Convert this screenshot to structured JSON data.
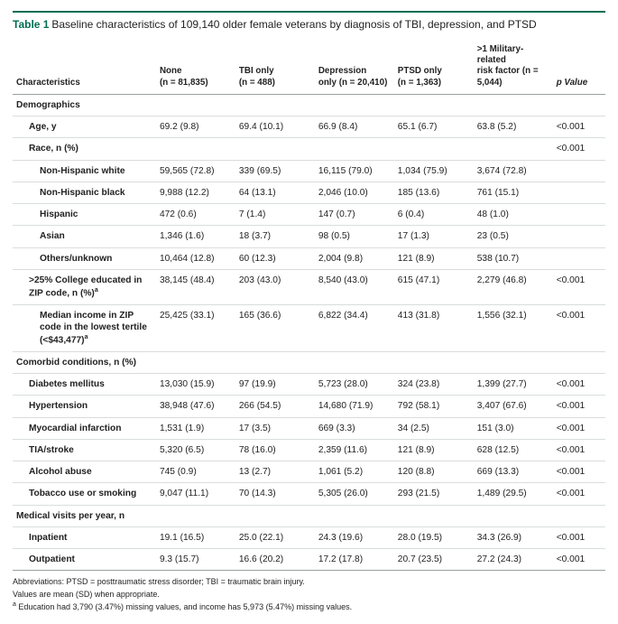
{
  "accent_color": "#006e53",
  "title_num": "Table 1",
  "title_caption": "Baseline characteristics of 109,140 older female veterans by diagnosis of TBI, depression, and PTSD",
  "header": {
    "char": "Characteristics",
    "g1a": "None",
    "g1b": "(n = 81,835)",
    "g2a": "TBI only",
    "g2b": "(n = 488)",
    "g3a": "Depression",
    "g3b": "only (n = 20,410)",
    "g4a": "PTSD only",
    "g4b": "(n = 1,363)",
    "g5a": ">1 Military-related",
    "g5b": "risk factor (n = 5,044)",
    "p": "p Value"
  },
  "sections": {
    "demo": "Demographics",
    "comorb": "Comorbid conditions, n (%)",
    "visits": "Medical visits per year, n"
  },
  "rows": {
    "age": {
      "l": "Age, y",
      "v": [
        "69.2 (9.8)",
        "69.4 (10.1)",
        "66.9 (8.4)",
        "65.1 (6.7)",
        "63.8 (5.2)"
      ],
      "p": "<0.001"
    },
    "race": {
      "l": "Race, n (%)",
      "v": [
        "",
        "",
        "",
        "",
        ""
      ],
      "p": "<0.001"
    },
    "nhw": {
      "l": "Non-Hispanic white",
      "v": [
        "59,565 (72.8)",
        "339 (69.5)",
        "16,115 (79.0)",
        "1,034 (75.9)",
        "3,674 (72.8)"
      ],
      "p": ""
    },
    "nhb": {
      "l": "Non-Hispanic black",
      "v": [
        "9,988 (12.2)",
        "64 (13.1)",
        "2,046 (10.0)",
        "185 (13.6)",
        "761 (15.1)"
      ],
      "p": ""
    },
    "hisp": {
      "l": "Hispanic",
      "v": [
        "472 (0.6)",
        "7 (1.4)",
        "147 (0.7)",
        "6 (0.4)",
        "48 (1.0)"
      ],
      "p": ""
    },
    "asian": {
      "l": "Asian",
      "v": [
        "1,346 (1.6)",
        "18 (3.7)",
        "98 (0.5)",
        "17 (1.3)",
        "23 (0.5)"
      ],
      "p": ""
    },
    "other": {
      "l": "Others/unknown",
      "v": [
        "10,464 (12.8)",
        "60 (12.3)",
        "2,004 (9.8)",
        "121 (8.9)",
        "538 (10.7)"
      ],
      "p": ""
    },
    "college": {
      "l": ">25% College educated in ZIP code, n (%)",
      "sup": "a",
      "v": [
        "38,145 (48.4)",
        "203 (43.0)",
        "8,540 (43.0)",
        "615 (47.1)",
        "2,279 (46.8)"
      ],
      "p": "<0.001"
    },
    "income": {
      "l": "Median income in ZIP code in the lowest tertile (<$43,477)",
      "sup": "a",
      "v": [
        "25,425 (33.1)",
        "165 (36.6)",
        "6,822 (34.4)",
        "413 (31.8)",
        "1,556 (32.1)"
      ],
      "p": "<0.001"
    },
    "dm": {
      "l": "Diabetes mellitus",
      "v": [
        "13,030 (15.9)",
        "97 (19.9)",
        "5,723 (28.0)",
        "324 (23.8)",
        "1,399 (27.7)"
      ],
      "p": "<0.001"
    },
    "htn": {
      "l": "Hypertension",
      "v": [
        "38,948 (47.6)",
        "266 (54.5)",
        "14,680 (71.9)",
        "792 (58.1)",
        "3,407 (67.6)"
      ],
      "p": "<0.001"
    },
    "mi": {
      "l": "Myocardial infarction",
      "v": [
        "1,531 (1.9)",
        "17 (3.5)",
        "669 (3.3)",
        "34 (2.5)",
        "151 (3.0)"
      ],
      "p": "<0.001"
    },
    "tia": {
      "l": "TIA/stroke",
      "v": [
        "5,320 (6.5)",
        "78 (16.0)",
        "2,359 (11.6)",
        "121 (8.9)",
        "628 (12.5)"
      ],
      "p": "<0.001"
    },
    "alc": {
      "l": "Alcohol abuse",
      "v": [
        "745 (0.9)",
        "13 (2.7)",
        "1,061 (5.2)",
        "120 (8.8)",
        "669 (13.3)"
      ],
      "p": "<0.001"
    },
    "tob": {
      "l": "Tobacco use or smoking",
      "v": [
        "9,047 (11.1)",
        "70 (14.3)",
        "5,305 (26.0)",
        "293 (21.5)",
        "1,489 (29.5)"
      ],
      "p": "<0.001"
    },
    "inp": {
      "l": "Inpatient",
      "v": [
        "19.1 (16.5)",
        "25.0 (22.1)",
        "24.3 (19.6)",
        "28.0 (19.5)",
        "34.3 (26.9)"
      ],
      "p": "<0.001"
    },
    "outp": {
      "l": "Outpatient",
      "v": [
        "9.3 (15.7)",
        "16.6 (20.2)",
        "17.2 (17.8)",
        "20.7 (23.5)",
        "27.2 (24.3)"
      ],
      "p": "<0.001"
    }
  },
  "footnotes": {
    "f1": "Abbreviations: PTSD = posttraumatic stress disorder; TBI = traumatic brain injury.",
    "f2": "Values are mean (SD) when appropriate.",
    "f3a": "a",
    "f3": " Education had 3,790 (3.47%) missing values, and income has 5,973 (5.47%) missing values."
  }
}
